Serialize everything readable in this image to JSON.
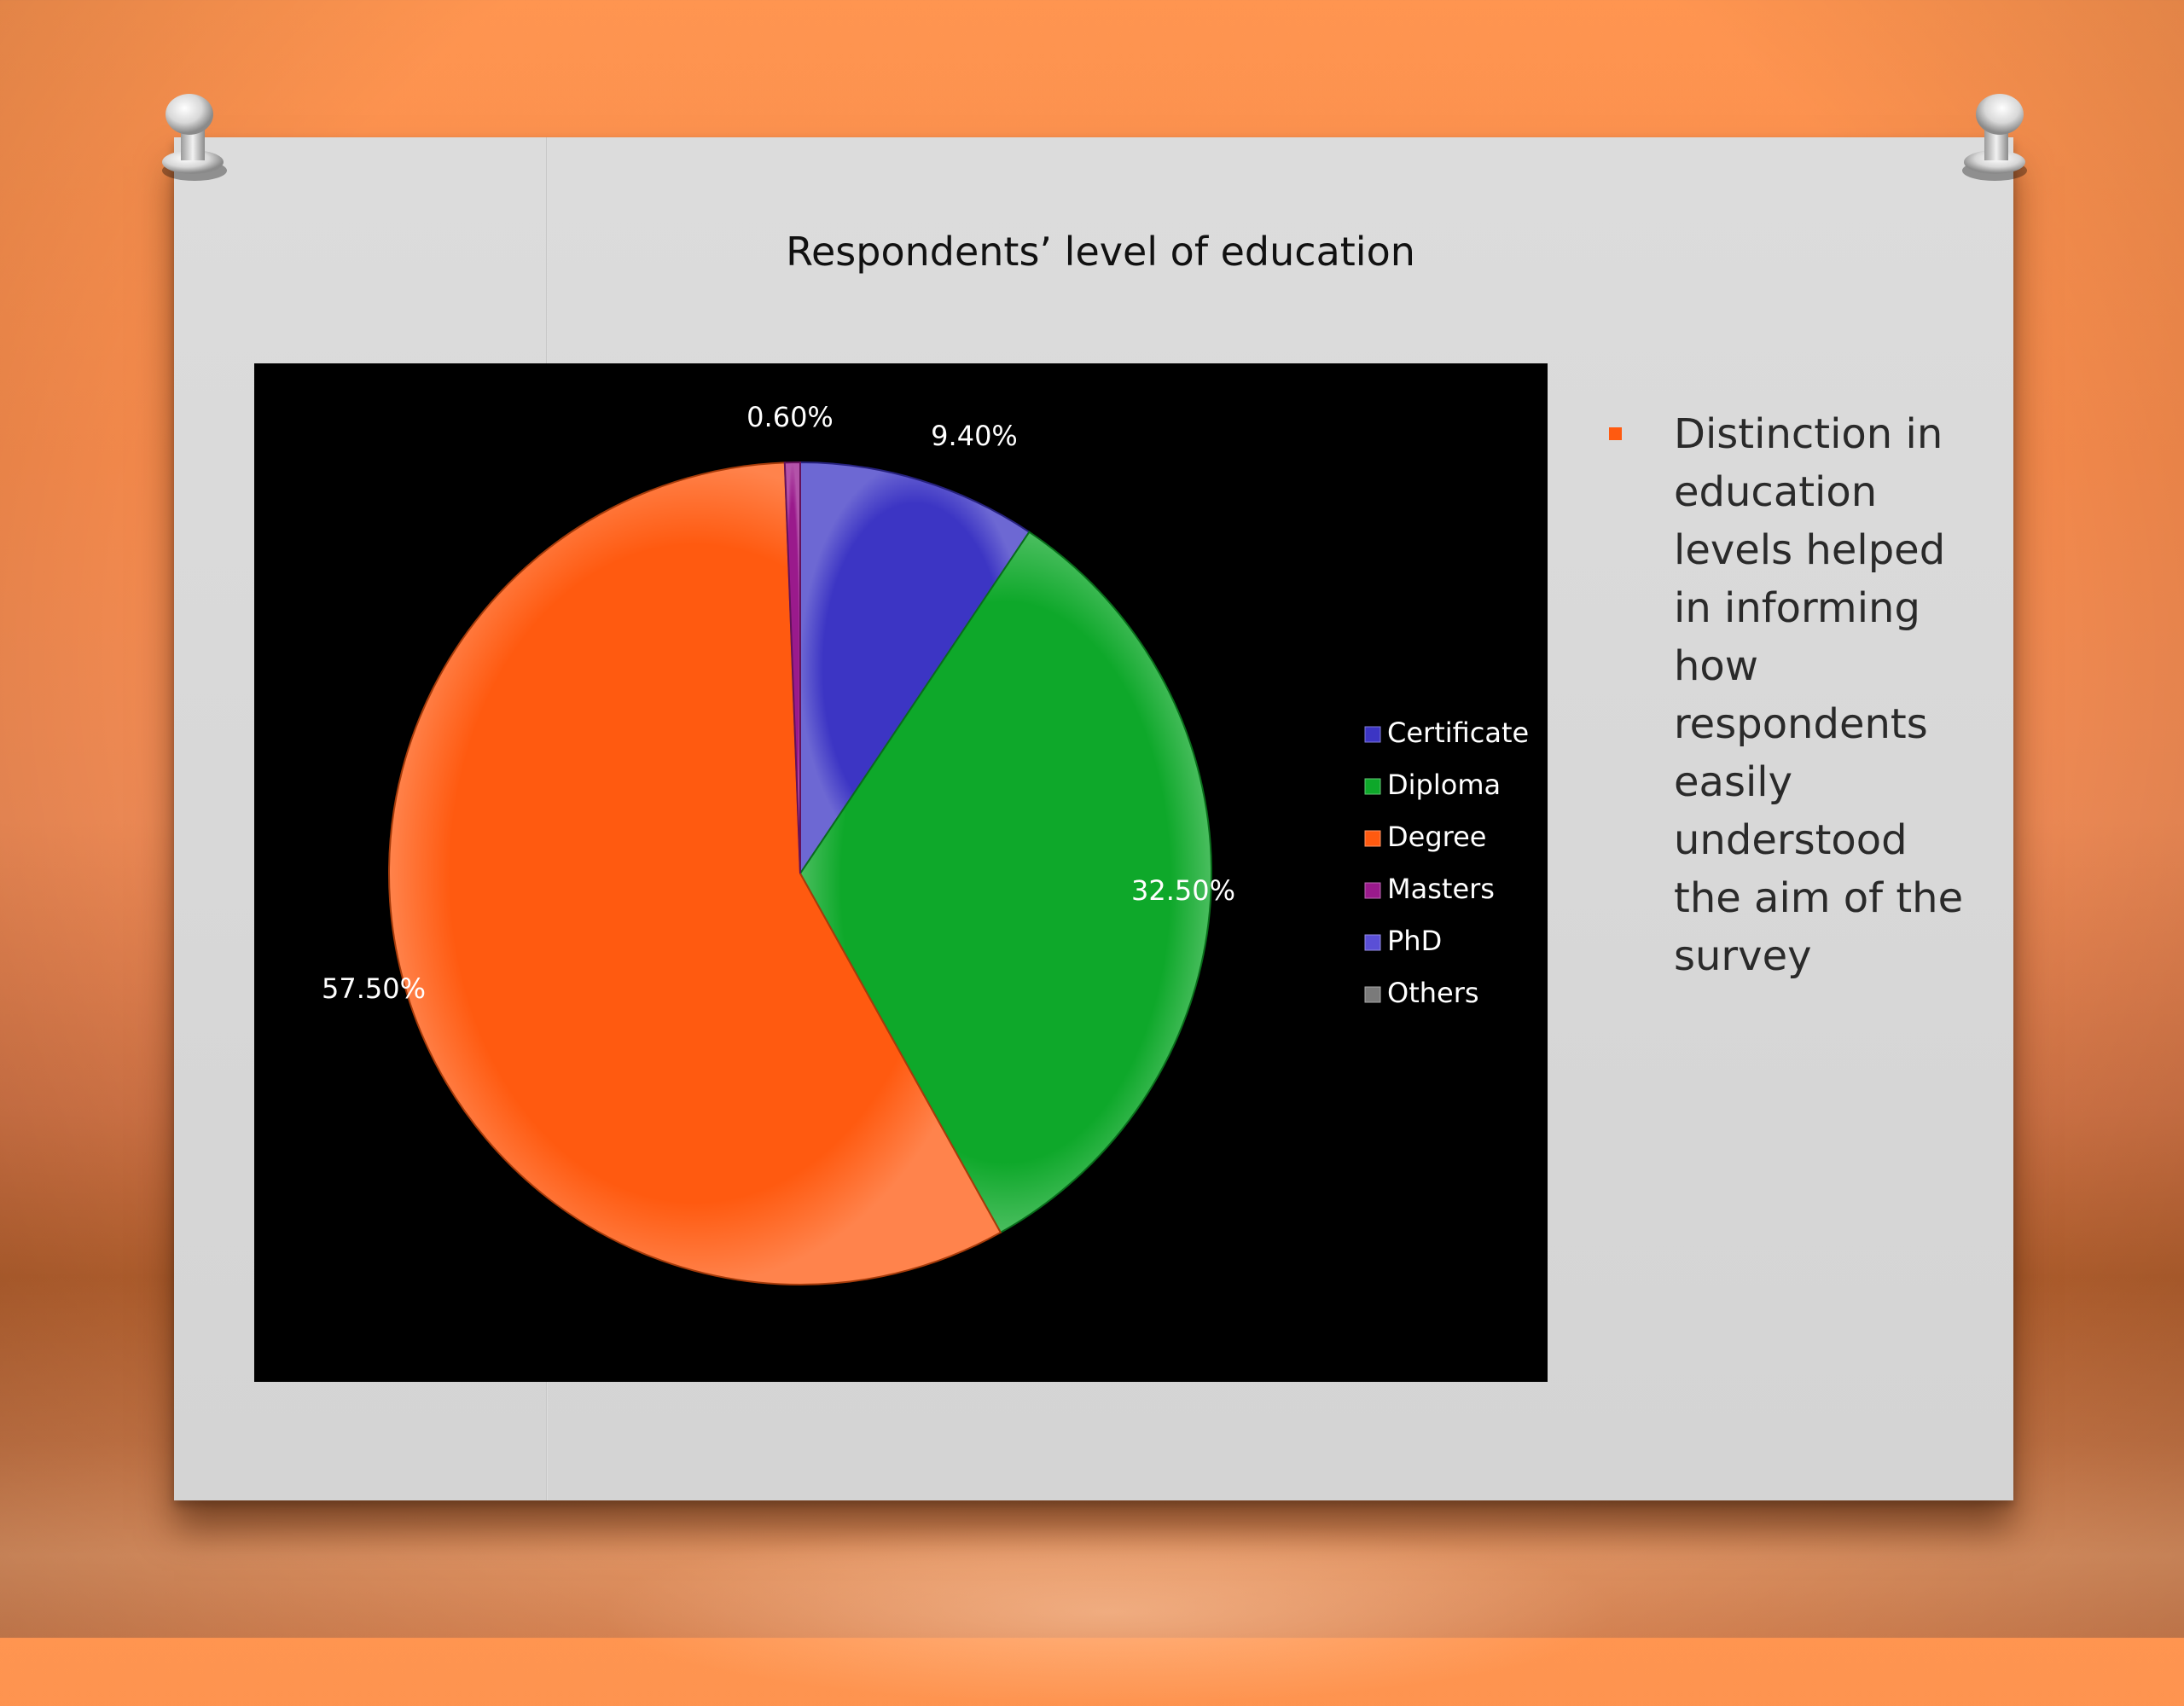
{
  "slide": {
    "bullet_text": "Distinction in education levels helped in informing how respondents easily understood the aim of the survey",
    "bullet_color": "#ff5a10"
  },
  "chart_data": {
    "type": "pie",
    "title": "Respondents’ level of education",
    "legend_position": "right",
    "categories": [
      "Certificate",
      "Diploma",
      "Degree",
      "Masters",
      "PhD",
      "Others"
    ],
    "values": [
      9.4,
      32.5,
      57.5,
      0.6,
      0,
      0
    ],
    "labels": [
      "9.40%",
      "32.50%",
      "57.50%",
      "0.60%"
    ],
    "colors": [
      "#3c35c4",
      "#0ea82a",
      "#ff5a10",
      "#9a1a8c",
      "#5a4fd6",
      "#7a7a7a"
    ]
  }
}
